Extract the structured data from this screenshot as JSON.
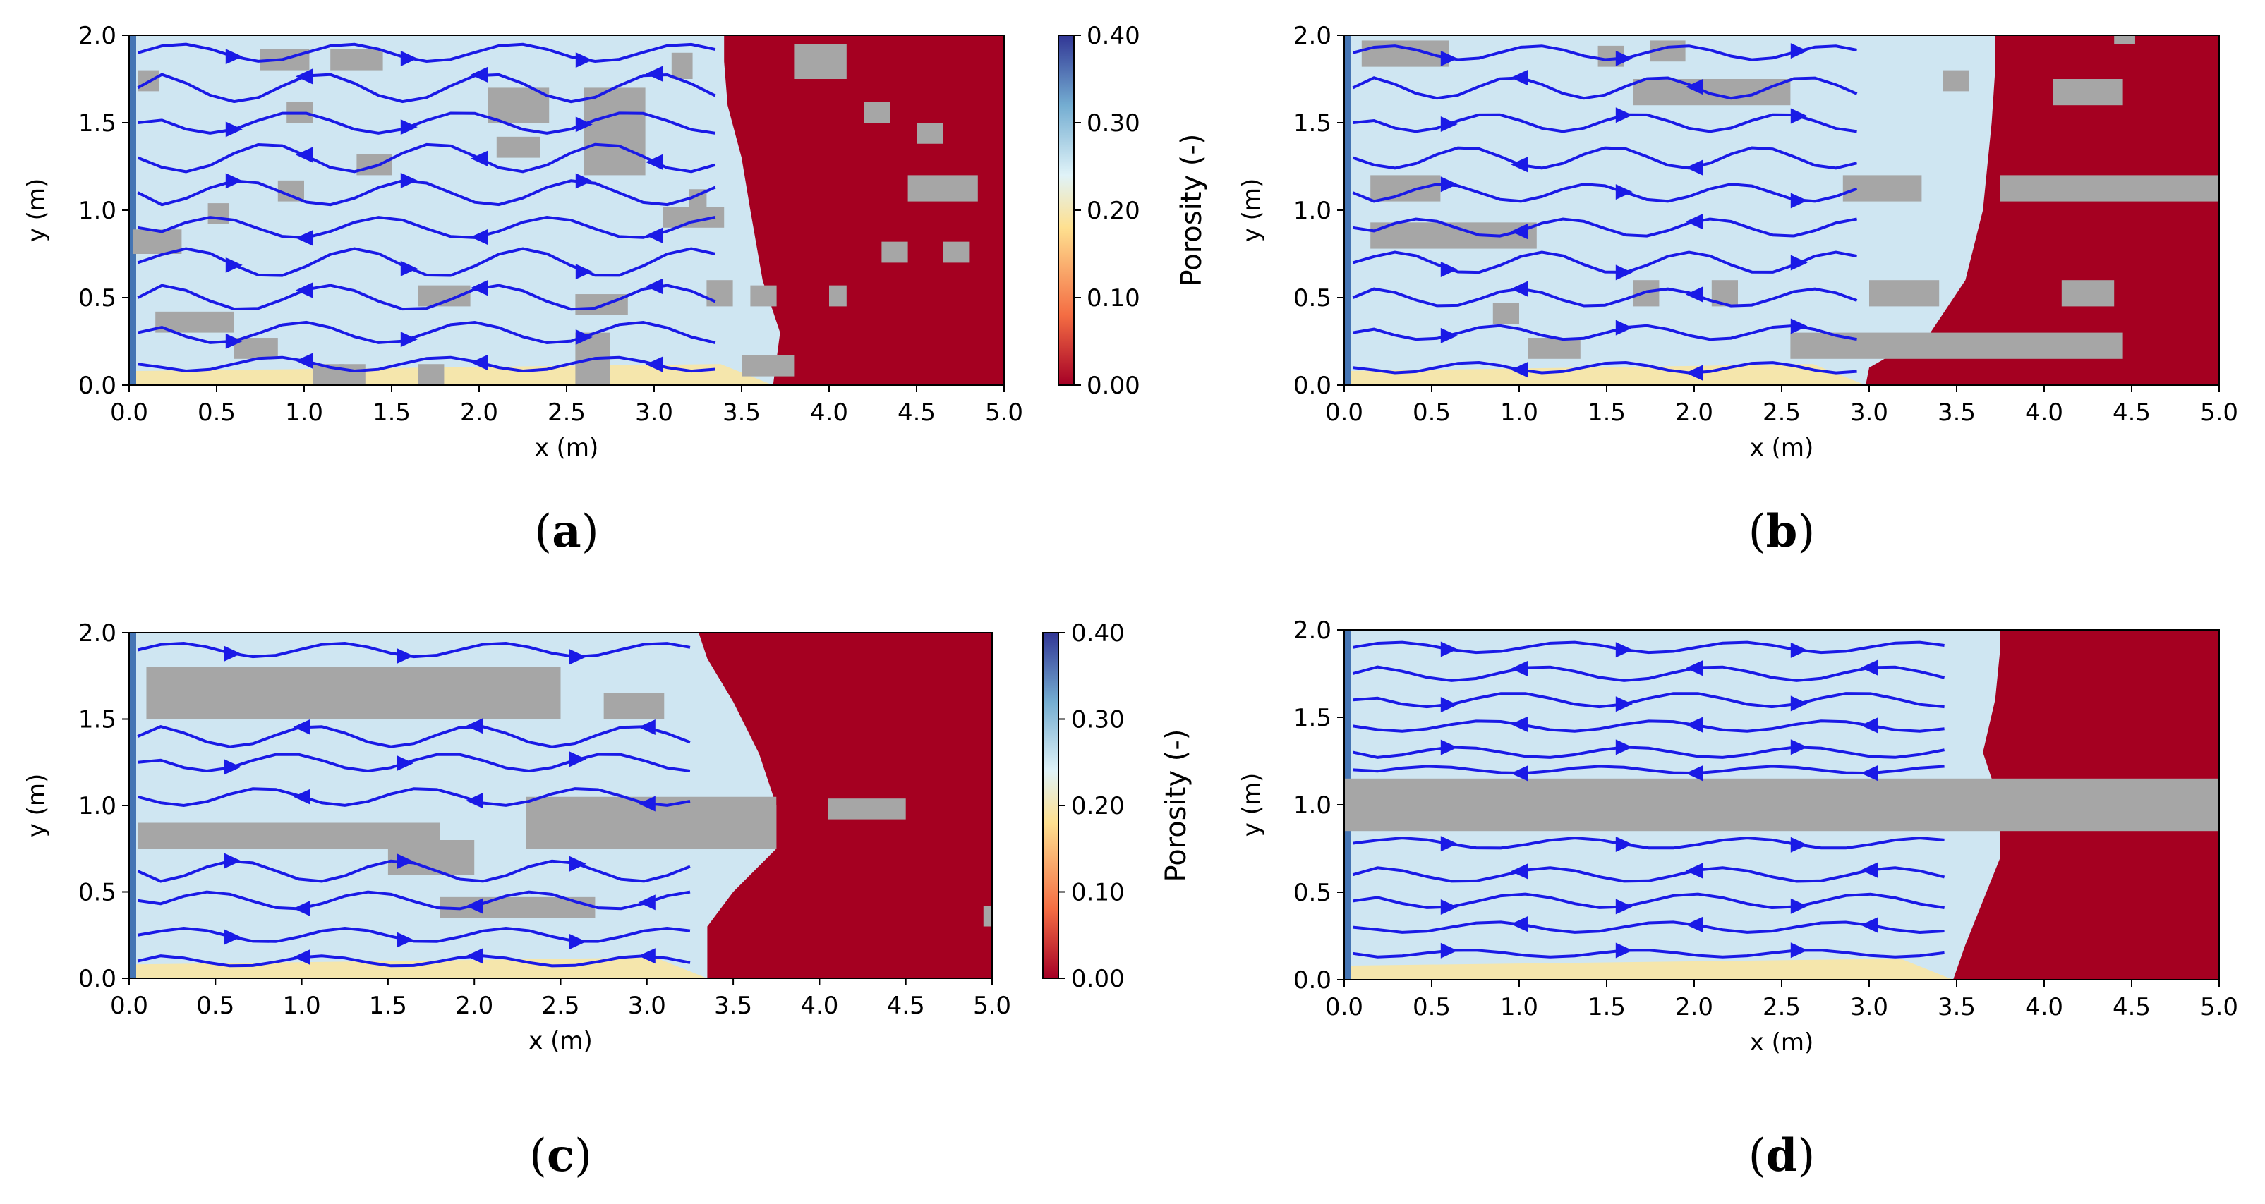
{
  "chart_data": [
    {
      "id": "a",
      "type": "heatmap",
      "caption": {
        "open": "(",
        "letter": "a",
        "close": ")"
      },
      "xlabel": "x (m)",
      "ylabel": "y (m)",
      "xlim": [
        0,
        5
      ],
      "ylim": [
        0,
        2
      ],
      "xticks": [
        "0.0",
        "0.5",
        "1.0",
        "1.5",
        "2.0",
        "2.5",
        "3.0",
        "3.5",
        "4.0",
        "4.5",
        "5.0"
      ],
      "yticks": [
        "0.0",
        "0.5",
        "1.0",
        "1.5",
        "2.0"
      ],
      "front": [
        [
          0,
          3.68
        ],
        [
          0.3,
          3.72
        ],
        [
          0.6,
          3.62
        ],
        [
          1.0,
          3.55
        ],
        [
          1.3,
          3.5
        ],
        [
          1.6,
          3.42
        ],
        [
          1.85,
          3.4
        ],
        [
          2.0,
          3.4
        ]
      ],
      "obstacles": [
        [
          0.05,
          1.68,
          0.12,
          0.12
        ],
        [
          0.75,
          1.8,
          0.28,
          0.12
        ],
        [
          1.15,
          1.8,
          0.3,
          0.12
        ],
        [
          0.9,
          1.5,
          0.15,
          0.12
        ],
        [
          1.3,
          1.2,
          0.2,
          0.12
        ],
        [
          0.85,
          1.05,
          0.15,
          0.12
        ],
        [
          0.45,
          0.92,
          0.12,
          0.12
        ],
        [
          0.02,
          0.75,
          0.28,
          0.14
        ],
        [
          0.15,
          0.3,
          0.45,
          0.12
        ],
        [
          0.6,
          0.15,
          0.25,
          0.12
        ],
        [
          1.05,
          0.0,
          0.18,
          0.12
        ],
        [
          1.2,
          0.0,
          0.15,
          0.12
        ],
        [
          1.65,
          0.0,
          0.15,
          0.12
        ],
        [
          1.65,
          0.45,
          0.3,
          0.12
        ],
        [
          2.05,
          1.5,
          0.35,
          0.2
        ],
        [
          2.1,
          1.3,
          0.25,
          0.12
        ],
        [
          2.6,
          1.2,
          0.35,
          0.5
        ],
        [
          3.1,
          1.75,
          0.12,
          0.15
        ],
        [
          3.05,
          0.9,
          0.35,
          0.12
        ],
        [
          3.3,
          0.45,
          0.15,
          0.15
        ],
        [
          2.55,
          0.4,
          0.3,
          0.12
        ],
        [
          2.55,
          0.0,
          0.2,
          0.3
        ],
        [
          3.8,
          1.75,
          0.3,
          0.2
        ],
        [
          4.2,
          1.5,
          0.15,
          0.12
        ],
        [
          4.5,
          1.38,
          0.15,
          0.12
        ],
        [
          4.45,
          1.05,
          0.4,
          0.15
        ],
        [
          4.3,
          0.7,
          0.15,
          0.12
        ],
        [
          4.65,
          0.7,
          0.15,
          0.12
        ],
        [
          3.5,
          0.05,
          0.3,
          0.12
        ],
        [
          3.55,
          0.45,
          0.15,
          0.12
        ],
        [
          3.2,
          1.0,
          0.1,
          0.12
        ],
        [
          4.0,
          0.45,
          0.1,
          0.12
        ]
      ],
      "streams": [
        {
          "y": 1.9,
          "amp": 0.05
        },
        {
          "y": 1.7,
          "amp": 0.08
        },
        {
          "y": 1.5,
          "amp": 0.06
        },
        {
          "y": 1.3,
          "amp": 0.08
        },
        {
          "y": 1.1,
          "amp": 0.07
        },
        {
          "y": 0.9,
          "amp": 0.06
        },
        {
          "y": 0.7,
          "amp": 0.08
        },
        {
          "y": 0.5,
          "amp": 0.07
        },
        {
          "y": 0.3,
          "amp": 0.06
        },
        {
          "y": 0.12,
          "amp": 0.04
        }
      ]
    },
    {
      "id": "b",
      "type": "heatmap",
      "caption": {
        "open": "(",
        "letter": "b",
        "close": ")"
      },
      "xlabel": "x (m)",
      "ylabel": "y (m)",
      "xlim": [
        0,
        5
      ],
      "ylim": [
        0,
        2
      ],
      "xticks": [
        "0.0",
        "0.5",
        "1.0",
        "1.5",
        "2.0",
        "2.5",
        "3.0",
        "3.5",
        "4.0",
        "4.5",
        "5.0"
      ],
      "yticks": [
        "0.0",
        "0.5",
        "1.0",
        "1.5",
        "2.0"
      ],
      "front": [
        [
          0,
          2.98
        ],
        [
          0.1,
          3.0
        ],
        [
          0.3,
          3.35
        ],
        [
          0.6,
          3.55
        ],
        [
          1.0,
          3.65
        ],
        [
          1.5,
          3.7
        ],
        [
          1.8,
          3.72
        ],
        [
          2.0,
          3.72
        ]
      ],
      "obstacles": [
        [
          0.1,
          1.82,
          0.5,
          0.15
        ],
        [
          1.65,
          1.6,
          0.9,
          0.15
        ],
        [
          3.42,
          1.68,
          0.15,
          0.12
        ],
        [
          0.15,
          1.05,
          0.4,
          0.15
        ],
        [
          2.85,
          1.05,
          0.45,
          0.15
        ],
        [
          0.15,
          0.78,
          0.95,
          0.15
        ],
        [
          0.85,
          0.35,
          0.15,
          0.12
        ],
        [
          1.05,
          0.15,
          0.3,
          0.12
        ],
        [
          1.65,
          0.45,
          0.15,
          0.15
        ],
        [
          2.1,
          0.45,
          0.15,
          0.15
        ],
        [
          3.0,
          0.45,
          0.4,
          0.15
        ],
        [
          2.55,
          0.15,
          1.9,
          0.15
        ],
        [
          4.05,
          1.6,
          0.4,
          0.15
        ],
        [
          3.75,
          1.05,
          1.25,
          0.15
        ],
        [
          4.1,
          0.45,
          0.3,
          0.15
        ],
        [
          1.45,
          1.82,
          0.15,
          0.12
        ],
        [
          1.75,
          1.85,
          0.2,
          0.12
        ],
        [
          4.4,
          1.95,
          0.12,
          0.05
        ]
      ],
      "streams": [
        {
          "y": 1.9,
          "amp": 0.04
        },
        {
          "y": 1.7,
          "amp": 0.06
        },
        {
          "y": 1.5,
          "amp": 0.05
        },
        {
          "y": 1.3,
          "amp": 0.06
        },
        {
          "y": 1.1,
          "amp": 0.05
        },
        {
          "y": 0.9,
          "amp": 0.05
        },
        {
          "y": 0.7,
          "amp": 0.06
        },
        {
          "y": 0.5,
          "amp": 0.05
        },
        {
          "y": 0.3,
          "amp": 0.04
        },
        {
          "y": 0.1,
          "amp": 0.03
        }
      ]
    },
    {
      "id": "c",
      "type": "heatmap",
      "caption": {
        "open": "(",
        "letter": "c",
        "close": ")"
      },
      "xlabel": "x (m)",
      "ylabel": "y (m)",
      "xlim": [
        0,
        5
      ],
      "ylim": [
        0,
        2
      ],
      "xticks": [
        "0.0",
        "0.5",
        "1.0",
        "1.5",
        "2.0",
        "2.5",
        "3.0",
        "3.5",
        "4.0",
        "4.5",
        "5.0"
      ],
      "yticks": [
        "0.0",
        "0.5",
        "1.0",
        "1.5",
        "2.0"
      ],
      "front": [
        [
          0,
          3.35
        ],
        [
          0.3,
          3.35
        ],
        [
          0.5,
          3.5
        ],
        [
          0.75,
          3.75
        ],
        [
          1.0,
          3.75
        ],
        [
          1.3,
          3.65
        ],
        [
          1.6,
          3.5
        ],
        [
          1.85,
          3.35
        ],
        [
          2.0,
          3.3
        ]
      ],
      "obstacles": [
        [
          0.1,
          1.5,
          2.4,
          0.3
        ],
        [
          2.75,
          1.5,
          0.35,
          0.15
        ],
        [
          0.05,
          0.75,
          1.75,
          0.15
        ],
        [
          1.5,
          0.6,
          0.5,
          0.2
        ],
        [
          2.3,
          0.75,
          1.45,
          0.3
        ],
        [
          1.8,
          0.35,
          0.9,
          0.12
        ],
        [
          4.05,
          0.92,
          0.45,
          0.12
        ],
        [
          4.95,
          0.3,
          0.05,
          0.12
        ]
      ],
      "streams": [
        {
          "y": 1.9,
          "amp": 0.04
        },
        {
          "y": 1.4,
          "amp": 0.06
        },
        {
          "y": 1.25,
          "amp": 0.05
        },
        {
          "y": 1.05,
          "amp": 0.05
        },
        {
          "y": 0.62,
          "amp": 0.06
        },
        {
          "y": 0.45,
          "amp": 0.05
        },
        {
          "y": 0.25,
          "amp": 0.04
        },
        {
          "y": 0.1,
          "amp": 0.03
        }
      ]
    },
    {
      "id": "d",
      "type": "heatmap",
      "caption": {
        "open": "(",
        "letter": "d",
        "close": ")"
      },
      "xlabel": "x (m)",
      "ylabel": "y (m)",
      "xlim": [
        0,
        5
      ],
      "ylim": [
        0,
        2
      ],
      "xticks": [
        "0.0",
        "0.5",
        "1.0",
        "1.5",
        "2.0",
        "2.5",
        "3.0",
        "3.5",
        "4.0",
        "4.5",
        "5.0"
      ],
      "yticks": [
        "0.0",
        "0.5",
        "1.0",
        "1.5",
        "2.0"
      ],
      "front": [
        [
          0,
          3.48
        ],
        [
          0.2,
          3.55
        ],
        [
          0.45,
          3.65
        ],
        [
          0.7,
          3.75
        ],
        [
          1.0,
          3.75
        ],
        [
          1.3,
          3.65
        ],
        [
          1.6,
          3.72
        ],
        [
          1.9,
          3.75
        ],
        [
          2.0,
          3.75
        ]
      ],
      "obstacles": [
        [
          0.0,
          0.85,
          5.0,
          0.3
        ]
      ],
      "streams": [
        {
          "y": 1.9,
          "amp": 0.03
        },
        {
          "y": 1.75,
          "amp": 0.04
        },
        {
          "y": 1.6,
          "amp": 0.04
        },
        {
          "y": 1.45,
          "amp": 0.03
        },
        {
          "y": 1.3,
          "amp": 0.03
        },
        {
          "y": 1.2,
          "amp": 0.02
        },
        {
          "y": 0.78,
          "amp": 0.03
        },
        {
          "y": 0.6,
          "amp": 0.04
        },
        {
          "y": 0.45,
          "amp": 0.04
        },
        {
          "y": 0.3,
          "amp": 0.03
        },
        {
          "y": 0.15,
          "amp": 0.02
        }
      ]
    }
  ],
  "colorbar": {
    "label": "Porosity (-)",
    "ticks": [
      "0.00",
      "0.10",
      "0.20",
      "0.30",
      "0.40"
    ],
    "min": 0.0,
    "max": 0.4,
    "stops": [
      "#a50026",
      "#f46d43",
      "#fee090",
      "#e0f3f8",
      "#74add1",
      "#313695"
    ]
  },
  "colors": {
    "solid": "#a50021",
    "pore": "#cfe6f2",
    "obstacle": "#a6a6a6",
    "stream": "#1a1ae6",
    "edge_warm": "#fbe5a0",
    "inlet": "#4575b4"
  }
}
